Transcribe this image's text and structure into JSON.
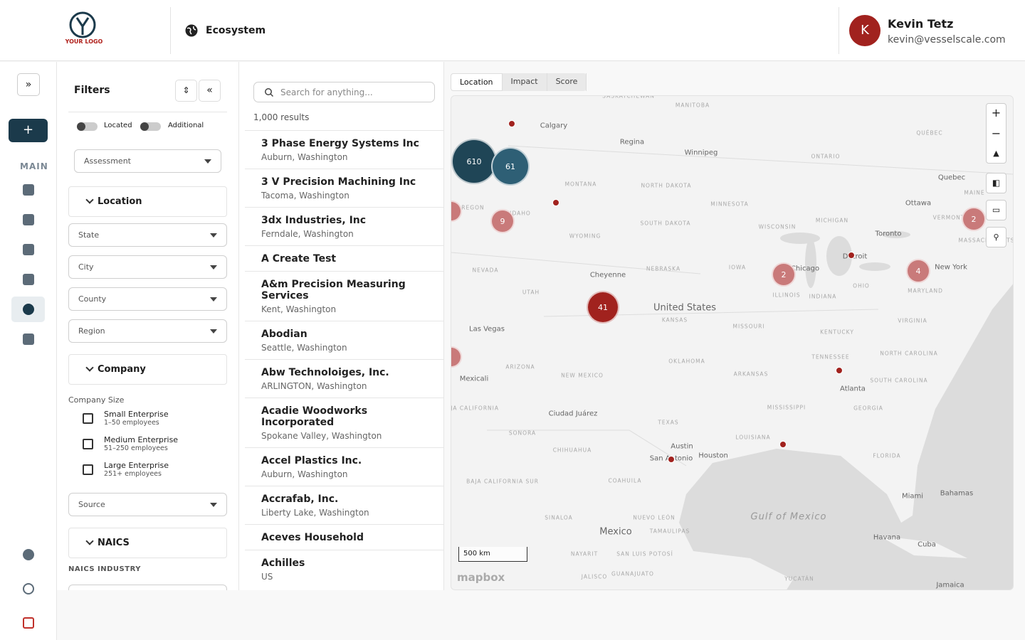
{
  "header": {
    "logo": "YOUR LOGO",
    "nav": "Ecosystem",
    "user": {
      "initial": "K",
      "name": "Kevin Tetz",
      "email": "kevin@vesselscale.com"
    }
  },
  "sidebar": {
    "section": "MAIN"
  },
  "filters": {
    "title": "Filters",
    "toggles": [
      "Located",
      "Additional"
    ],
    "assessment": "Assessment",
    "location": {
      "title": "Location",
      "fields": [
        "State",
        "City",
        "County",
        "Region"
      ]
    },
    "company": {
      "title": "Company",
      "size_label": "Company Size",
      "sizes": [
        {
          "label": "Small Enterprise",
          "detail": "1–50 employees"
        },
        {
          "label": "Medium Enterprise",
          "detail": "51–250 employees"
        },
        {
          "label": "Large Enterprise",
          "detail": "251+ employees"
        }
      ],
      "source": "Source"
    },
    "naics": {
      "title": "NAICS",
      "industry_label": "NAICS INDUSTRY"
    }
  },
  "results": {
    "search_placeholder": "Search for anything...",
    "count": "1,000 results",
    "items": [
      {
        "name": "3 Phase Energy Systems Inc",
        "location": "Auburn, Washington"
      },
      {
        "name": "3 V Precision Machining Inc",
        "location": "Tacoma, Washington"
      },
      {
        "name": "3dx Industries, Inc",
        "location": "Ferndale, Washington"
      },
      {
        "name": "A Create Test"
      },
      {
        "name": "A&m Precision Measuring Services",
        "location": "Kent, Washington"
      },
      {
        "name": "Abodian",
        "location": "Seattle, Washington"
      },
      {
        "name": "Abw Technoloiges, Inc.",
        "location": "ARLINGTON, Washington"
      },
      {
        "name": "Acadie Woodworks Incorporated",
        "location": "Spokane Valley, Washington"
      },
      {
        "name": "Accel Plastics Inc.",
        "location": "Auburn, Washington"
      },
      {
        "name": "Accrafab, Inc.",
        "location": "Liberty Lake, Washington"
      },
      {
        "name": "Aceves Household"
      },
      {
        "name": "Achilles",
        "location": "US"
      }
    ]
  },
  "map": {
    "tabs": [
      "Location",
      "Impact",
      "Score"
    ],
    "clusters": [
      610,
      61,
      9,
      41,
      2,
      2,
      4
    ],
    "labels": [
      "SASKATCHEWAN",
      "MANITOBA",
      "Calgary",
      "Regina",
      "Winnipeg",
      "ONTARIO",
      "QUÉBEC",
      "Quebec",
      "Ottawa",
      "MAINE",
      "VERMONT",
      "MASSACHUSETTS",
      "Toronto",
      "MICHIGAN",
      "WISCONSIN",
      "MINNESOTA",
      "NORTH DAKOTA",
      "SOUTH DAKOTA",
      "MONTANA",
      "WYOMING",
      "IDAHO",
      "OREGON",
      "NEVADA",
      "UTAH",
      "Cheyenne",
      "NEBRASKA",
      "IOWA",
      "Chicago",
      "Detroit",
      "ILLINOIS",
      "INDIANA",
      "OHIO",
      "New York",
      "MARYLAND",
      "VIRGINIA",
      "KENTUCKY",
      "United States",
      "KANSAS",
      "MISSOURI",
      "TENNESSEE",
      "NORTH CAROLINA",
      "SOUTH CAROLINA",
      "Atlanta",
      "GEORGIA",
      "MISSISSIPPI",
      "ARKANSAS",
      "OKLAHOMA",
      "Las Vegas",
      "ARIZONA",
      "NEW MEXICO",
      "Mexicali",
      "BAJA CALIFORNIA",
      "SONORA",
      "Ciudad Juárez",
      "CHIHUAHUA",
      "TEXAS",
      "Austin",
      "San Antonio",
      "Houston",
      "LOUISIANA",
      "FLORIDA",
      "Miami",
      "Bahamas",
      "Gulf of Mexico",
      "Havana",
      "Cuba",
      "Mexico",
      "COAHUILA",
      "NUEVO LEÓN",
      "TAMAULIPAS",
      "SINALOA",
      "BAJA CALIFORNIA SUR",
      "NAYARIT",
      "SAN LUIS POTOSÍ",
      "JALISCO",
      "GUANAJUATO",
      "YUCATÁN",
      "Jamaica"
    ],
    "scale": "500 km",
    "attribution": "mapbox"
  }
}
